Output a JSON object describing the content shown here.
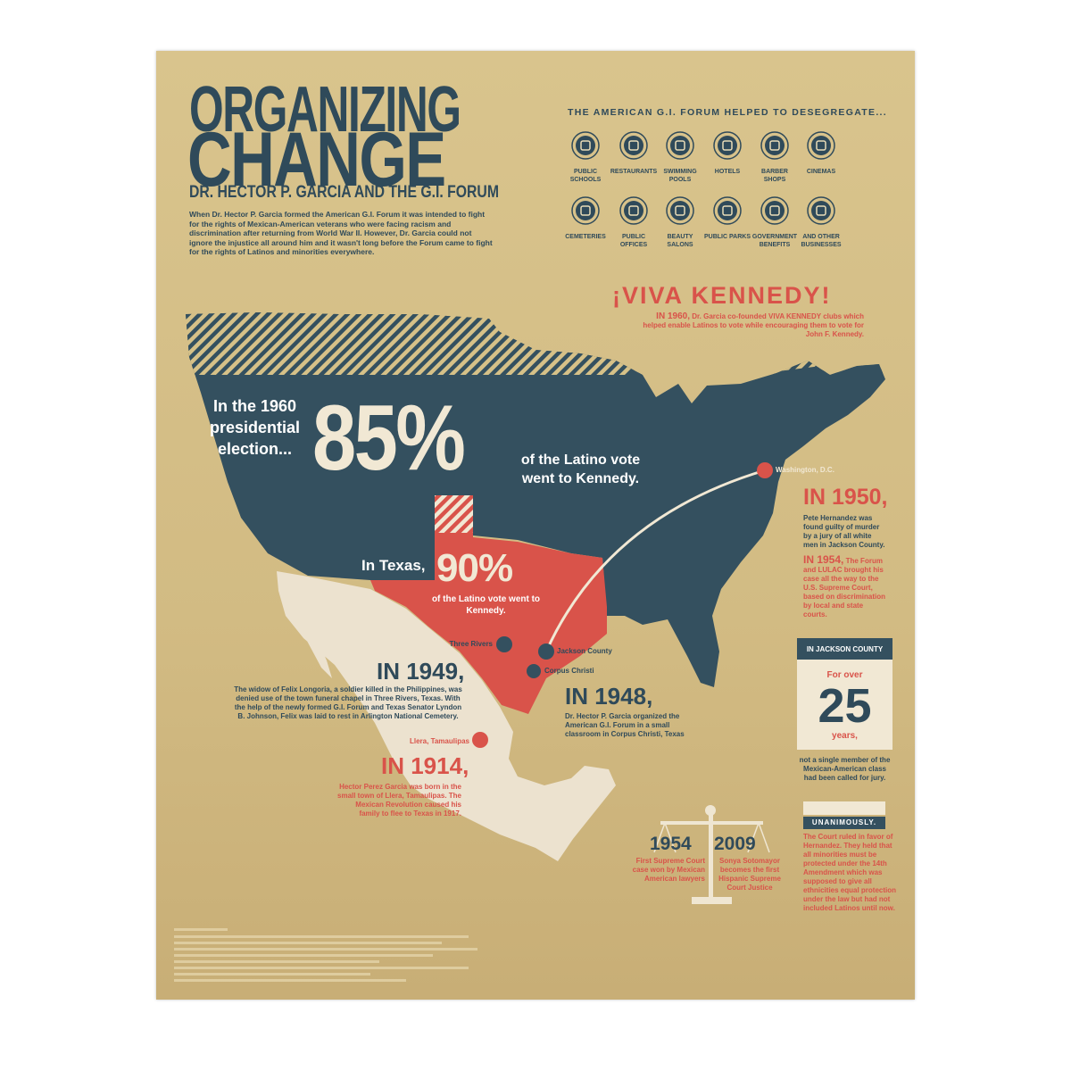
{
  "header": {
    "title_line1": "ORGANIZING",
    "title_line2": "CHANGE",
    "subtitle": "DR. HECTOR P. GARCIA AND THE G.I. FORUM",
    "intro": "When Dr. Hector P. Garcia formed the American G.I. Forum it was intended to fight for the rights of Mexican-American veterans who were facing racism and discrimination after returning from World War II. However, Dr. Garcia could not ignore the injustice all around him and it wasn't long before the Forum came to fight for the rights of Latinos and minorities everywhere."
  },
  "desegregate": {
    "heading": "THE AMERICAN G.I. FORUM HELPED TO DESEGREGATE...",
    "items": [
      "PUBLIC SCHOOLS",
      "RESTAURANTS",
      "SWIMMING POOLS",
      "HOTELS",
      "BARBER SHOPS",
      "CINEMAS",
      "CEMETERIES",
      "PUBLIC OFFICES",
      "BEAUTY SALONS",
      "PUBLIC PARKS",
      "GOVERNMENT BENEFITS",
      "AND OTHER BUSINESSES"
    ]
  },
  "viva": {
    "title": "¡VIVA KENNEDY!",
    "lead": "IN 1960,",
    "text": "Dr. Garcia co-founded VIVA KENNEDY clubs which helped enable Latinos to vote while encouraging them to vote for John F. Kennedy."
  },
  "national": {
    "lead": "In the 1960 presidential election...",
    "stat": "85%",
    "text": "of the Latino vote went to Kennedy."
  },
  "texas": {
    "lead": "In Texas,",
    "stat": "90%",
    "text": "of the Latino vote went to Kennedy."
  },
  "places": [
    "Three Rivers",
    "Jackson County",
    "Corpus Christi",
    "Washington, D.C.",
    "Llera, Tamaulipas"
  ],
  "events": {
    "e1949": {
      "year": "IN 1949,",
      "text": "The widow of Felix Longoria, a soldier killed in the Philippines, was denied use of the town funeral chapel in Three Rivers, Texas. With the help of the newly formed G.I. Forum and Texas Senator Lyndon B. Johnson, Felix was laid to rest in Arlington National Cemetery."
    },
    "e1948": {
      "year": "IN 1948,",
      "text": "Dr. Hector P. Garcia organized the American G.I. Forum in a small classroom in Corpus Christi, Texas"
    },
    "e1914": {
      "year": "IN 1914,",
      "text": "Hector Perez Garcia was born in the small town of Llera, Tamaulipas. The Mexican Revolution caused his family to flee to Texas in 1917."
    },
    "e1950": {
      "year": "IN 1950,",
      "text": "Pete Hernandez was found guilty of murder by a jury of all white men in Jackson County."
    },
    "e1954": {
      "year": "IN 1954,",
      "text": "The Forum and LULAC brought his case all the way to the U.S. Supreme Court, based on discrimination by local and state courts."
    }
  },
  "jackson": {
    "header": "IN JACKSON COUNTY",
    "pre": "For over",
    "number": "25",
    "post": "years,",
    "text": "not a single member of the Mexican-American class had been called for jury."
  },
  "ruling": {
    "label": "UNANIMOUSLY.",
    "text": "The Court ruled in favor of Hernandez. They held that all minorities must be protected under the 14th Amendment which was supposed to give all ethnicities equal protection under the law but had not included Latinos until now."
  },
  "scale": {
    "left": {
      "year": "1954",
      "text": "First Supreme Court case won by Mexican American lawyers"
    },
    "right": {
      "year": "2009",
      "text": "Sonya Sotomayor becomes the first Hispanic Supreme Court Justice"
    }
  }
}
